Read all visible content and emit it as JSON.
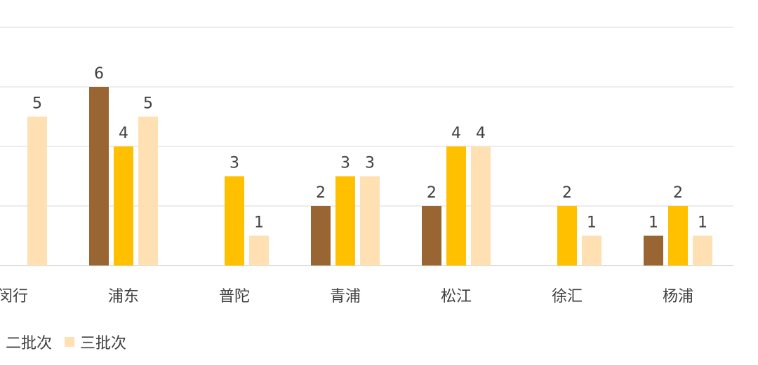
{
  "chart_data": {
    "type": "bar",
    "categories": [
      "闵行",
      "浦东",
      "普陀",
      "青浦",
      "松江",
      "徐汇",
      "杨浦"
    ],
    "series": [
      {
        "name": "",
        "color": "#996633",
        "values": [
          null,
          6,
          null,
          2,
          2,
          null,
          1
        ]
      },
      {
        "name": "二批次",
        "color": "#FFC000",
        "values": [
          null,
          4,
          3,
          3,
          4,
          2,
          2
        ]
      },
      {
        "name": "三批次",
        "color": "#FFE0B3",
        "values": [
          5,
          5,
          1,
          3,
          4,
          1,
          1
        ]
      }
    ],
    "ylim": [
      0,
      8
    ],
    "grid": true,
    "legend": "bottom"
  }
}
